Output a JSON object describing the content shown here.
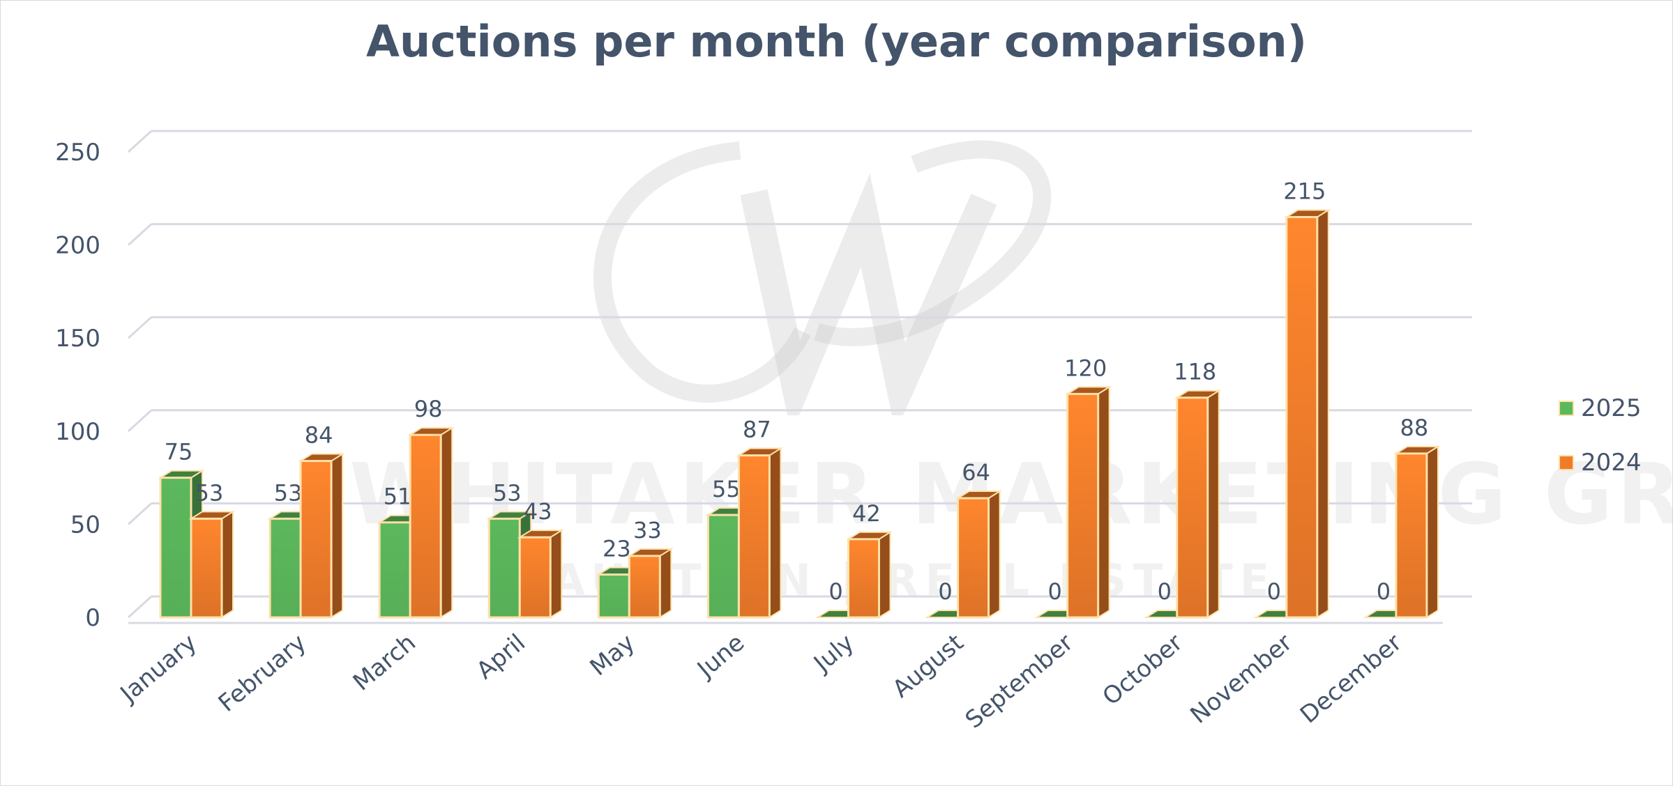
{
  "chart_data": {
    "type": "bar",
    "title": "Auctions per month (year comparison)",
    "categories": [
      "January",
      "February",
      "March",
      "April",
      "May",
      "June",
      "July",
      "August",
      "September",
      "October",
      "November",
      "December"
    ],
    "series": [
      {
        "name": "2025",
        "values": [
          75,
          53,
          51,
          53,
          23,
          55,
          0,
          0,
          0,
          0,
          0,
          0
        ],
        "color": "#5cb85c"
      },
      {
        "name": "2024",
        "values": [
          53,
          84,
          98,
          43,
          33,
          87,
          42,
          64,
          120,
          118,
          215,
          88
        ],
        "color": "#f07c2a"
      }
    ],
    "ylim": [
      0,
      250
    ],
    "yticks": [
      0,
      50,
      100,
      150,
      200,
      250
    ],
    "grid": true,
    "legend_position": "right",
    "style": "3d-clustered-column"
  },
  "watermark": {
    "text": "WHITAKER MARKETING GROUP",
    "subtext": "AUCTION | REAL ESTATE"
  }
}
